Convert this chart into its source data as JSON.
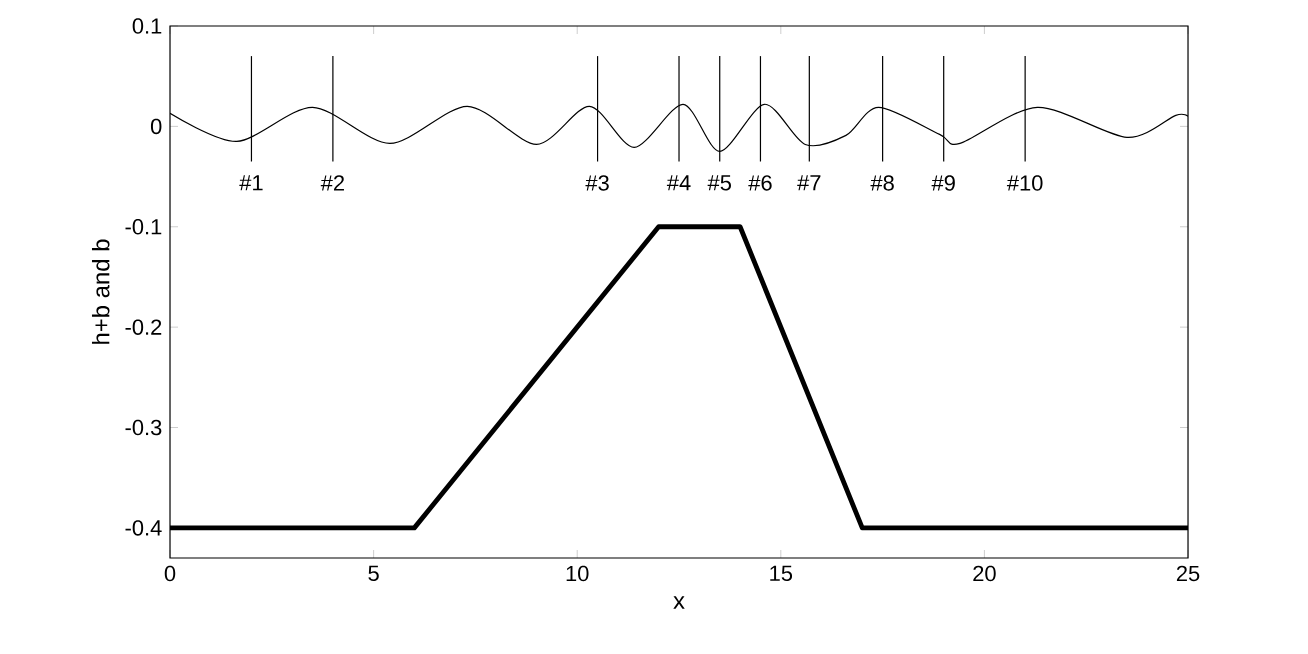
{
  "chart_data": {
    "type": "line",
    "xlabel": "x",
    "ylabel": "h+b and b",
    "xlim": [
      0,
      25
    ],
    "ylim": [
      -0.43,
      0.1
    ],
    "xticks": [
      0,
      5,
      10,
      15,
      20,
      25
    ],
    "yticks": [
      -0.4,
      -0.3,
      -0.2,
      -0.1,
      0,
      0.1
    ],
    "grid": false,
    "marker": "none",
    "line_style": "solid",
    "series": [
      {
        "color": "#000000",
        "x": [
          0,
          6,
          12,
          14,
          17,
          25
        ],
        "values": [
          -0.4,
          -0.4,
          -0.1,
          -0.1,
          -0.4,
          -0.4
        ]
      },
      {
        "color": "#000000",
        "x": [
          0,
          1.64,
          3.5,
          5.4,
          7.3,
          9.0,
          10.3,
          11.4,
          12.6,
          13.5,
          14.6,
          15.6,
          16.6,
          17.4,
          18.9,
          19.4,
          21.3,
          23.5,
          24.7,
          25
        ],
        "values": [
          0.013,
          -0.015,
          0.019,
          -0.017,
          0.02,
          -0.018,
          0.02,
          -0.021,
          0.022,
          -0.025,
          0.022,
          -0.018,
          -0.009,
          0.019,
          -0.008,
          -0.017,
          0.019,
          -0.011,
          0.011,
          0.01
        ]
      },
      {
        "color": "#000000",
        "x": [
          2,
          2
        ],
        "values": [
          0.07,
          -0.035
        ]
      },
      {
        "color": "#000000",
        "x": [
          4,
          4
        ],
        "values": [
          0.07,
          -0.035
        ]
      },
      {
        "color": "#000000",
        "x": [
          10.5,
          10.5
        ],
        "values": [
          0.07,
          -0.035
        ]
      },
      {
        "color": "#000000",
        "x": [
          12.5,
          12.5
        ],
        "values": [
          0.07,
          -0.035
        ]
      },
      {
        "color": "#000000",
        "x": [
          13.5,
          13.5
        ],
        "values": [
          0.07,
          -0.035
        ]
      },
      {
        "color": "#000000",
        "x": [
          14.5,
          14.5
        ],
        "values": [
          0.07,
          -0.035
        ]
      },
      {
        "color": "#000000",
        "x": [
          15.7,
          15.7
        ],
        "values": [
          0.07,
          -0.035
        ]
      },
      {
        "color": "#000000",
        "x": [
          17.5,
          17.5
        ],
        "values": [
          0.07,
          -0.035
        ]
      },
      {
        "color": "#000000",
        "x": [
          19,
          19
        ],
        "values": [
          0.07,
          -0.035
        ]
      },
      {
        "color": "#000000",
        "x": [
          21,
          21
        ],
        "values": [
          0.07,
          -0.035
        ]
      }
    ],
    "annotations": [
      {
        "text": "#1",
        "x": 2,
        "y": -0.035
      },
      {
        "text": "#2",
        "x": 4,
        "y": -0.035
      },
      {
        "text": "#3",
        "x": 10.5,
        "y": -0.035
      },
      {
        "text": "#4",
        "x": 12.5,
        "y": -0.035
      },
      {
        "text": "#5",
        "x": 13.5,
        "y": -0.035
      },
      {
        "text": "#6",
        "x": 14.5,
        "y": -0.035
      },
      {
        "text": "#7",
        "x": 15.7,
        "y": -0.035
      },
      {
        "text": "#8",
        "x": 17.5,
        "y": -0.035
      },
      {
        "text": "#9",
        "x": 19,
        "y": -0.035
      },
      {
        "text": "#10",
        "x": 21,
        "y": -0.035
      }
    ]
  }
}
